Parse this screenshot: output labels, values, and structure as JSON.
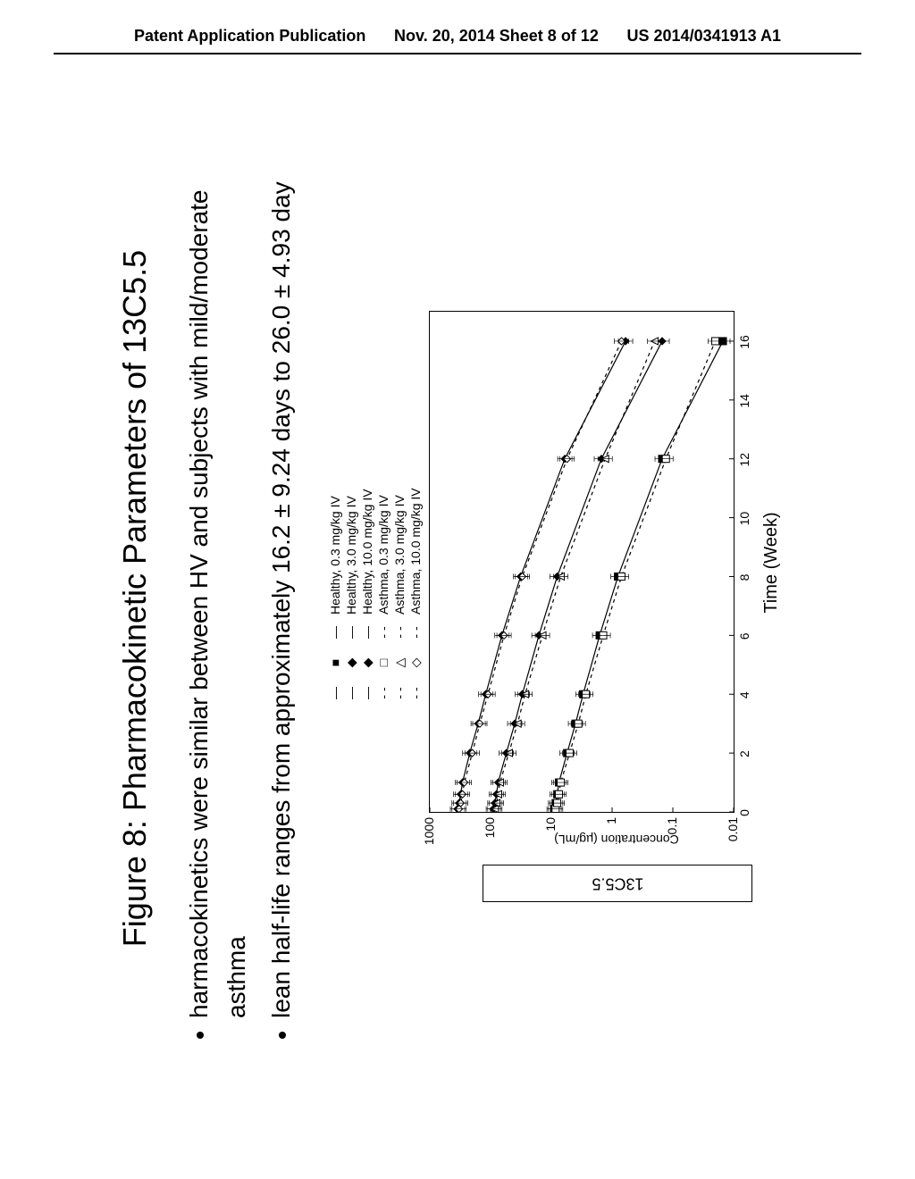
{
  "header": {
    "left": "Patent Application Publication",
    "mid": "Nov. 20, 2014  Sheet 8 of 12",
    "right": "US 2014/0341913 A1"
  },
  "figure": {
    "title": "Figure 8: Pharmacokinetic Parameters of 13C5.5",
    "bullet1": "harmacokinetics were similar between HV and subjects with mild/moderate asthma",
    "bullet2": "lean half-life ranges from approximately 16.2 ± 9.24 days to 26.0 ± 4.93 day",
    "ylabel_box": "13C5.5",
    "ylabel": "Concentration (µg/mL)",
    "xlabel": "Time (Week)",
    "legend": [
      {
        "label": "Healthy, 0.3 mg/kg IV",
        "marker": "■",
        "dash": "solid",
        "fill": "#000"
      },
      {
        "label": "Healthy, 3.0 mg/kg IV",
        "marker": "◆",
        "dash": "solid",
        "fill": "#000"
      },
      {
        "label": "Healthy, 10.0 mg/kg IV",
        "marker": "◆",
        "dash": "solid",
        "fill": "#000"
      },
      {
        "label": "Asthma, 0.3 mg/kg IV",
        "marker": "□",
        "dash": "dash",
        "fill": "none"
      },
      {
        "label": "Asthma, 3.0 mg/kg IV",
        "marker": "△",
        "dash": "dash",
        "fill": "none"
      },
      {
        "label": "Asthma, 10.0 mg/kg IV",
        "marker": "◇",
        "dash": "dash",
        "fill": "none"
      }
    ],
    "yticks": [
      "1000",
      "100",
      "10",
      "1",
      "0.1",
      "0.01"
    ],
    "ylim": [
      0.01,
      1000
    ],
    "yscale": "log",
    "xticks": [
      0,
      2,
      4,
      6,
      8,
      10,
      12,
      14,
      16
    ],
    "xlim": [
      0,
      17
    ],
    "series": [
      {
        "name": "Healthy 0.3",
        "color": "#000",
        "marker": "square",
        "filled": true,
        "dash": "none",
        "x": [
          0.1,
          0.3,
          0.6,
          1,
          2,
          3,
          4,
          6,
          8,
          12,
          16
        ],
        "y": [
          9,
          8.5,
          8,
          7.5,
          5.5,
          4,
          3,
          1.6,
          0.8,
          0.15,
          0.015
        ]
      },
      {
        "name": "Asthma 0.3",
        "color": "#000",
        "marker": "square",
        "filled": false,
        "dash": "4,4",
        "x": [
          0.1,
          0.3,
          0.6,
          1,
          2,
          3,
          4,
          6,
          8,
          12,
          16
        ],
        "y": [
          8.5,
          8,
          7.5,
          7,
          5,
          3.6,
          2.7,
          1.4,
          0.7,
          0.13,
          0.02
        ]
      },
      {
        "name": "Healthy 3.0",
        "color": "#000",
        "marker": "diamond",
        "filled": true,
        "dash": "none",
        "x": [
          0.1,
          0.3,
          0.6,
          1,
          2,
          3,
          4,
          6,
          8,
          12,
          16
        ],
        "y": [
          90,
          85,
          80,
          75,
          55,
          40,
          30,
          16,
          8,
          1.5,
          0.15
        ]
      },
      {
        "name": "Asthma 3.0",
        "color": "#000",
        "marker": "triangle",
        "filled": false,
        "dash": "4,4",
        "x": [
          0.1,
          0.3,
          0.6,
          1,
          2,
          3,
          4,
          6,
          8,
          12,
          16
        ],
        "y": [
          85,
          80,
          75,
          70,
          50,
          36,
          27,
          14,
          7,
          1.3,
          0.2
        ]
      },
      {
        "name": "Healthy 10.0",
        "color": "#000",
        "marker": "diamond",
        "filled": true,
        "dash": "none",
        "x": [
          0.1,
          0.3,
          0.6,
          1,
          2,
          3,
          4,
          6,
          8,
          12,
          16
        ],
        "y": [
          350,
          330,
          310,
          290,
          220,
          160,
          120,
          65,
          32,
          6,
          0.6
        ]
      },
      {
        "name": "Asthma 10.0",
        "color": "#000",
        "marker": "diamond",
        "filled": false,
        "dash": "4,4",
        "x": [
          0.1,
          0.3,
          0.6,
          1,
          2,
          3,
          4,
          6,
          8,
          12,
          16
        ],
        "y": [
          330,
          310,
          290,
          270,
          200,
          150,
          110,
          60,
          30,
          5.5,
          0.7
        ]
      }
    ],
    "plot_bg": "#ffffff",
    "axis_color": "#000000",
    "font_family": "Arial"
  }
}
